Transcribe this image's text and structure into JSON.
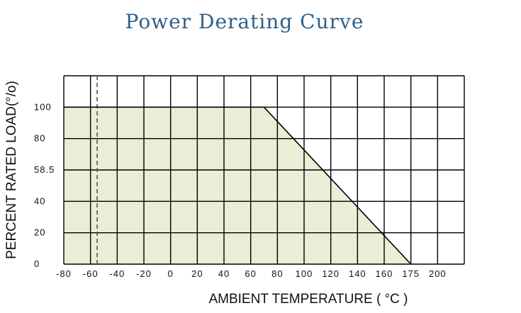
{
  "chart_data": {
    "type": "area",
    "title": "Power Derating Curve",
    "xlabel": "AMBIENT TEMPERATURE ( °C )",
    "ylabel": "PERCENT RATED LOAD(°/o)",
    "x_tick_labels": [
      "-80",
      "-60",
      "-40",
      "-20",
      "0",
      "20",
      "40",
      "60",
      "80",
      "100",
      "120",
      "140",
      "160",
      "175",
      "200"
    ],
    "y_tick_labels": [
      "0",
      "20",
      "40",
      "58.5",
      "80",
      "100"
    ],
    "xlim": [
      -80,
      200
    ],
    "ylim": [
      0,
      120
    ],
    "grid": true,
    "series": [
      {
        "x": [
          -55,
          70,
          175
        ],
        "y": [
          100,
          100,
          0
        ]
      }
    ],
    "reference_line_x": -55,
    "fill_color": "#ebeed6",
    "line_color": "#000000"
  }
}
